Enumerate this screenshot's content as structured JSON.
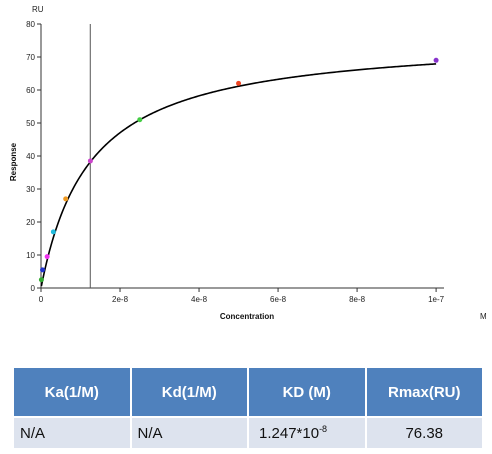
{
  "chart_data": {
    "type": "scatter",
    "y_unit": "RU",
    "x_unit": "M",
    "xlabel": "Concentration",
    "ylabel": "Response",
    "xlim": [
      0,
      1.02e-07
    ],
    "ylim": [
      0,
      80
    ],
    "x_ticks": [
      0,
      2e-08,
      4e-08,
      6e-08,
      8e-08,
      1e-07
    ],
    "x_tick_labels": [
      "0",
      "2e-8",
      "4e-8",
      "6e-8",
      "8e-8",
      "1e-7"
    ],
    "y_ticks": [
      0,
      10,
      20,
      30,
      40,
      50,
      60,
      70,
      80
    ],
    "y_tick_labels": [
      "0",
      "10",
      "20",
      "30",
      "40",
      "50",
      "60",
      "70",
      "80"
    ],
    "grid": false,
    "vertical_marker_x": 1.247e-08,
    "points": [
      {
        "x": 9.8e-11,
        "y": 2.5,
        "color": "#33aa33"
      },
      {
        "x": 3.9e-10,
        "y": 5.5,
        "color": "#2233cc"
      },
      {
        "x": 1.56e-09,
        "y": 9.5,
        "color": "#ee33ee"
      },
      {
        "x": 3.13e-09,
        "y": 17,
        "color": "#22bbdd"
      },
      {
        "x": 6.25e-09,
        "y": 27,
        "color": "#ee9922"
      },
      {
        "x": 1.25e-08,
        "y": 38.5,
        "color": "#cc44cc"
      },
      {
        "x": 2.5e-08,
        "y": 51,
        "color": "#44cc44"
      },
      {
        "x": 5e-08,
        "y": 62,
        "color": "#ee4422"
      },
      {
        "x": 1e-07,
        "y": 69,
        "color": "#8833cc"
      }
    ],
    "fit": {
      "model": "steady_state_affinity",
      "Rmax": 76.38,
      "KD": 1.247e-08,
      "color": "#000000"
    }
  },
  "table": {
    "headers": [
      "Ka(1/M)",
      "Kd(1/M)",
      "KD (M)",
      "Rmax(RU)"
    ],
    "row": {
      "ka": "N/A",
      "kd": "N/A",
      "KD_mantissa": "1.247*10",
      "KD_exponent": "-8",
      "rmax": "76.38"
    }
  },
  "colors": {
    "header_bg": "#4f81bd",
    "row_bg": "#dde3ee",
    "header_text": "#ffffff"
  }
}
